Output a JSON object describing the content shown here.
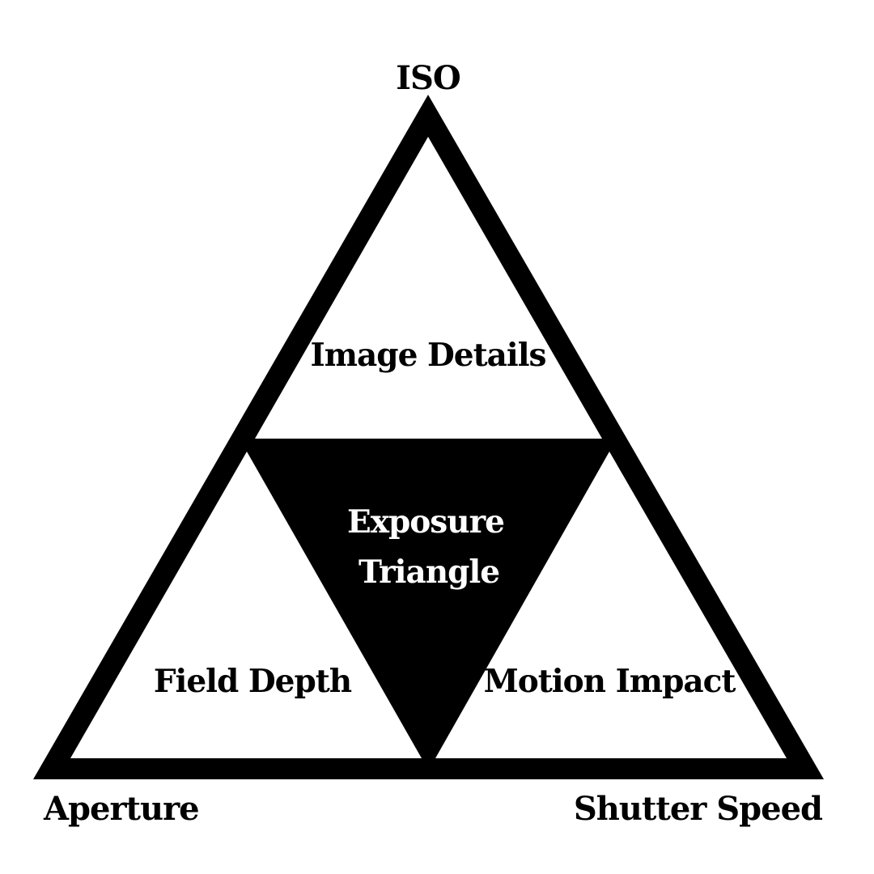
{
  "diagram": {
    "colors": {
      "background": "#ffffff",
      "ink": "#000000",
      "inverse_text": "#ffffff"
    },
    "vertices": {
      "top": "ISO",
      "bottom_left": "Aperture",
      "bottom_right": "Shutter Speed"
    },
    "regions": {
      "top": "Image Details",
      "bottom_left": "Field Depth",
      "bottom_right": "Motion Impact",
      "center_line1": "Exposure",
      "center_line2": "Triangle"
    }
  }
}
